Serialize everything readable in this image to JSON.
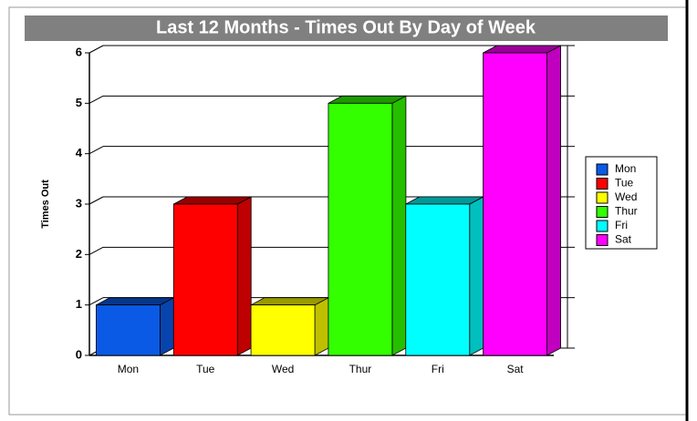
{
  "chart_data": {
    "type": "bar3d",
    "title": "Last 12 Months - Times Out By Day of Week",
    "y_label": "Times Out",
    "categories": [
      "Mon",
      "Tue",
      "Wed",
      "Thur",
      "Fri",
      "Sat"
    ],
    "values": [
      1,
      3,
      1,
      5,
      3,
      6
    ],
    "colors": [
      "#0a5ae6",
      "#ff0000",
      "#ffff00",
      "#33ff00",
      "#00ffff",
      "#ff00ff"
    ],
    "ylim": [
      0,
      6
    ],
    "yticks": [
      0,
      1,
      2,
      3,
      4,
      5,
      6
    ],
    "grid": true,
    "legend": "right"
  }
}
